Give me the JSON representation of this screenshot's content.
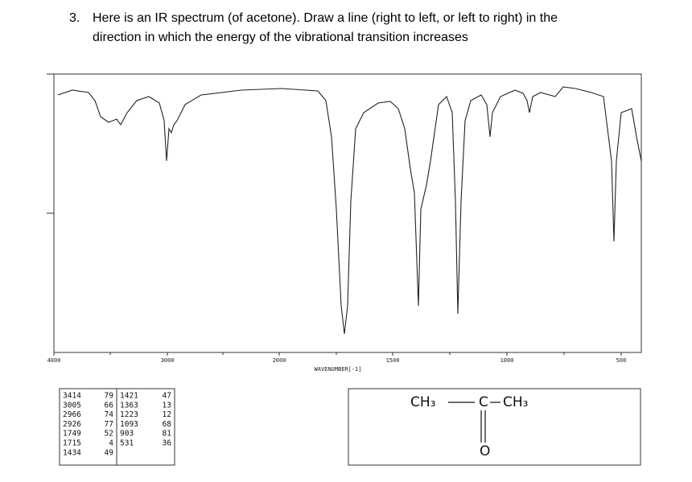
{
  "question": {
    "number": "3.",
    "lines": [
      "Here is an IR spectrum (of acetone). Draw a line (right to left, or left to right) in the",
      "direction in which the energy of the vibrational transition increases"
    ]
  },
  "spectrum": {
    "ticks": [
      "4000",
      "3000",
      "2000",
      "1500",
      "1000",
      "500"
    ],
    "x_label": "WAVENUMBER[-1]"
  },
  "peak_table": {
    "columns": [
      [
        [
          "3414",
          "79"
        ],
        [
          "3005",
          "66"
        ],
        [
          "2966",
          "74"
        ],
        [
          "2926",
          "77"
        ],
        [
          "1749",
          "52"
        ],
        [
          "1715",
          "4"
        ],
        [
          "1434",
          "49"
        ]
      ],
      [
        [
          "1421",
          "47"
        ],
        [
          "1363",
          "13"
        ],
        [
          "1223",
          "12"
        ],
        [
          "1093",
          "68"
        ],
        [
          "903",
          "81"
        ],
        [
          "531",
          "36"
        ]
      ]
    ]
  },
  "structure": {
    "left": "CH₃",
    "center": "C",
    "right": "CH₃",
    "bottom": "O"
  }
}
